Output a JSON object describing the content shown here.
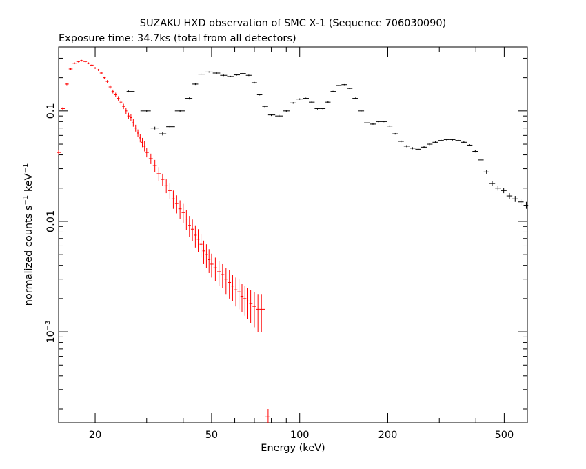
{
  "chart_data": {
    "type": "scatter",
    "title": "SUZAKU HXD observation of SMC X-1 (Sequence 706030090)",
    "subtitle": "Exposure time: 34.7ks (total from all detectors)",
    "xlabel": "Energy (keV)",
    "ylabel": "normalized counts s",
    "ylabel_sup1": "−1",
    "ylabel_mid": " keV",
    "ylabel_sup2": "−1",
    "xscale": "log",
    "yscale": "log",
    "xlim": [
      15,
      600
    ],
    "ylim": [
      0.00015,
      0.38
    ],
    "xticks": [
      {
        "value": 20,
        "label": "20"
      },
      {
        "value": 50,
        "label": "50"
      },
      {
        "value": 100,
        "label": "100"
      },
      {
        "value": 200,
        "label": "200"
      },
      {
        "value": 500,
        "label": "500"
      }
    ],
    "yticks": [
      {
        "value": 0.1,
        "label": "0.1"
      },
      {
        "value": 0.01,
        "label": "0.01"
      },
      {
        "value": 0.001,
        "label": "10",
        "sup": "−3"
      }
    ],
    "grid": false,
    "series": [
      {
        "color": "#ff0000",
        "marker": "cross",
        "x": [
          15.0,
          15.5,
          16.0,
          16.5,
          17.0,
          17.5,
          18.0,
          18.5,
          19.0,
          19.5,
          20.0,
          20.5,
          21.0,
          21.5,
          22.0,
          22.5,
          23.0,
          23.5,
          24.0,
          24.5,
          25.0,
          25.5,
          26.0,
          26.5,
          27.0,
          27.5,
          28.0,
          28.5,
          29.0,
          29.5,
          30.0,
          31.0,
          32.0,
          33.0,
          34.0,
          35.0,
          36.0,
          37.0,
          38.0,
          39.0,
          40.0,
          41.0,
          42.0,
          43.0,
          44.0,
          45.0,
          46.0,
          47.0,
          48.0,
          49.0,
          50.0,
          51.5,
          53.0,
          54.5,
          56.0,
          57.5,
          59.0,
          60.5,
          62.0,
          63.5,
          65.0,
          66.5,
          68.0,
          70.0,
          72.0,
          74.0,
          78.0
        ],
        "values": [
          0.042,
          0.105,
          0.175,
          0.24,
          0.27,
          0.28,
          0.285,
          0.28,
          0.27,
          0.26,
          0.245,
          0.235,
          0.22,
          0.2,
          0.185,
          0.165,
          0.15,
          0.14,
          0.13,
          0.12,
          0.11,
          0.1,
          0.09,
          0.087,
          0.078,
          0.07,
          0.063,
          0.057,
          0.052,
          0.048,
          0.042,
          0.037,
          0.032,
          0.027,
          0.024,
          0.021,
          0.019,
          0.016,
          0.0145,
          0.013,
          0.012,
          0.0105,
          0.0092,
          0.0085,
          0.0075,
          0.0069,
          0.0062,
          0.0054,
          0.005,
          0.0045,
          0.0041,
          0.0038,
          0.0035,
          0.0033,
          0.003,
          0.0028,
          0.0026,
          0.0024,
          0.0023,
          0.0021,
          0.002,
          0.0019,
          0.0018,
          0.0017,
          0.0016,
          0.0016,
          0.00017
        ],
        "yerr": [
          0.002,
          0.003,
          0.004,
          0.005,
          0.005,
          0.005,
          0.005,
          0.005,
          0.005,
          0.005,
          0.005,
          0.005,
          0.005,
          0.005,
          0.005,
          0.006,
          0.006,
          0.006,
          0.006,
          0.006,
          0.006,
          0.006,
          0.006,
          0.006,
          0.006,
          0.005,
          0.005,
          0.005,
          0.005,
          0.005,
          0.004,
          0.004,
          0.004,
          0.004,
          0.003,
          0.003,
          0.003,
          0.003,
          0.0027,
          0.0025,
          0.0024,
          0.0022,
          0.002,
          0.0019,
          0.0017,
          0.0016,
          0.0015,
          0.0013,
          0.0012,
          0.0011,
          0.001,
          0.0009,
          0.0009,
          0.0008,
          0.0008,
          0.0008,
          0.0007,
          0.0007,
          0.0007,
          0.0006,
          0.0006,
          0.0006,
          0.0006,
          0.0006,
          0.0006,
          0.0006,
          3e-05
        ]
      },
      {
        "color": "#000000",
        "marker": "cross",
        "x": [
          26,
          30,
          32,
          34,
          36,
          39,
          42,
          44,
          46,
          49,
          52,
          55,
          58,
          61,
          64,
          67,
          70,
          73,
          76,
          80,
          85,
          90,
          95,
          100,
          105,
          110,
          115,
          120,
          125,
          130,
          136,
          142,
          148,
          155,
          162,
          170,
          178,
          186,
          194,
          203,
          212,
          222,
          232,
          243,
          254,
          266,
          278,
          291,
          304,
          318,
          333,
          348,
          364,
          381,
          398,
          416,
          435,
          455,
          476,
          498,
          521,
          545,
          570,
          595
        ],
        "values": [
          0.15,
          0.1,
          0.07,
          0.062,
          0.072,
          0.1,
          0.13,
          0.175,
          0.215,
          0.225,
          0.22,
          0.21,
          0.205,
          0.212,
          0.218,
          0.21,
          0.18,
          0.14,
          0.11,
          0.092,
          0.09,
          0.1,
          0.118,
          0.128,
          0.13,
          0.12,
          0.105,
          0.105,
          0.12,
          0.15,
          0.17,
          0.173,
          0.16,
          0.13,
          0.1,
          0.078,
          0.076,
          0.08,
          0.08,
          0.073,
          0.062,
          0.053,
          0.048,
          0.046,
          0.045,
          0.047,
          0.05,
          0.052,
          0.054,
          0.055,
          0.055,
          0.054,
          0.052,
          0.049,
          0.043,
          0.036,
          0.028,
          0.022,
          0.02,
          0.019,
          0.017,
          0.016,
          0.015,
          0.014
        ],
        "yerr": [
          0.003,
          0.002,
          0.002,
          0.002,
          0.002,
          0.002,
          0.003,
          0.003,
          0.003,
          0.003,
          0.003,
          0.003,
          0.003,
          0.003,
          0.003,
          0.003,
          0.003,
          0.002,
          0.002,
          0.002,
          0.002,
          0.002,
          0.002,
          0.002,
          0.002,
          0.002,
          0.002,
          0.002,
          0.002,
          0.002,
          0.002,
          0.002,
          0.002,
          0.002,
          0.002,
          0.001,
          0.001,
          0.001,
          0.001,
          0.001,
          0.001,
          0.001,
          0.001,
          0.001,
          0.001,
          0.001,
          0.001,
          0.001,
          0.001,
          0.001,
          0.001,
          0.001,
          0.001,
          0.001,
          0.001,
          0.001,
          0.001,
          0.001,
          0.001,
          0.001,
          0.001,
          0.001,
          0.001,
          0.001
        ]
      }
    ]
  }
}
